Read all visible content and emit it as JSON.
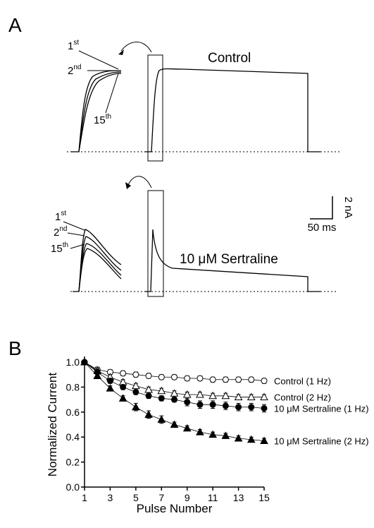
{
  "panels": {
    "a": {
      "label": "A",
      "control_label": "Control",
      "drug_label": "10 μM Sertraline",
      "control_pulses": [
        {
          "n": "1",
          "suffix": "st"
        },
        {
          "n": "2",
          "suffix": "nd"
        },
        {
          "n": "15",
          "suffix": "th"
        }
      ],
      "drug_pulses": [
        {
          "n": "1",
          "suffix": "st"
        },
        {
          "n": "2",
          "suffix": "nd"
        },
        {
          "n": "15",
          "suffix": "th"
        }
      ],
      "scale_current": "2 nA",
      "scale_time": "50 ms"
    },
    "b": {
      "label": "B"
    }
  },
  "chart_data": {
    "type": "line",
    "x_label": "Pulse Number",
    "y_label": "Normalized Current",
    "x": [
      1,
      2,
      3,
      4,
      5,
      6,
      7,
      8,
      9,
      10,
      11,
      12,
      13,
      14,
      15
    ],
    "xlim": [
      1,
      15
    ],
    "xticks": [
      1,
      3,
      5,
      7,
      9,
      11,
      13,
      15
    ],
    "ylim": [
      0,
      1.0
    ],
    "yticks": [
      {
        "value": 0,
        "label": "0.0"
      },
      {
        "value": 0.2,
        "label": "0.2"
      },
      {
        "value": 0.4,
        "label": "0.4"
      },
      {
        "value": 0.6,
        "label": "0.6"
      },
      {
        "value": 0.8,
        "label": "0.8"
      },
      {
        "value": 1.0,
        "label": "1.0"
      }
    ],
    "series": [
      {
        "name": "Control (1 Hz)",
        "color": "#000000",
        "marker": "open-circle",
        "values": [
          1.0,
          0.94,
          0.92,
          0.91,
          0.9,
          0.89,
          0.88,
          0.88,
          0.87,
          0.87,
          0.86,
          0.86,
          0.86,
          0.86,
          0.85
        ],
        "errors": [
          0,
          0.02,
          0.02,
          0.02,
          0.02,
          0.02,
          0.02,
          0.02,
          0.02,
          0.02,
          0.02,
          0.02,
          0.02,
          0.02,
          0.02
        ]
      },
      {
        "name": "Control (2 Hz)",
        "color": "#000000",
        "marker": "open-triangle",
        "values": [
          1.0,
          0.93,
          0.88,
          0.84,
          0.81,
          0.78,
          0.77,
          0.75,
          0.74,
          0.74,
          0.73,
          0.73,
          0.72,
          0.72,
          0.72
        ],
        "errors": [
          0,
          0.02,
          0.02,
          0.02,
          0.02,
          0.02,
          0.02,
          0.02,
          0.02,
          0.02,
          0.02,
          0.02,
          0.02,
          0.02,
          0.02
        ]
      },
      {
        "name": "10 μM Sertraline (1 Hz)",
        "color": "#000000",
        "marker": "filled-circle",
        "values": [
          1.0,
          0.92,
          0.85,
          0.8,
          0.76,
          0.73,
          0.71,
          0.7,
          0.68,
          0.66,
          0.66,
          0.65,
          0.64,
          0.64,
          0.63
        ],
        "errors": [
          0,
          0.02,
          0.02,
          0.02,
          0.02,
          0.02,
          0.02,
          0.02,
          0.03,
          0.03,
          0.03,
          0.03,
          0.03,
          0.03,
          0.03
        ]
      },
      {
        "name": "10 μM Sertraline (2 Hz)",
        "color": "#000000",
        "marker": "filled-triangle",
        "values": [
          1.0,
          0.89,
          0.79,
          0.71,
          0.64,
          0.58,
          0.54,
          0.5,
          0.47,
          0.44,
          0.42,
          0.41,
          0.39,
          0.38,
          0.37
        ],
        "errors": [
          0,
          0.02,
          0.02,
          0.02,
          0.03,
          0.03,
          0.03,
          0.02,
          0.02,
          0.02,
          0.02,
          0.02,
          0.02,
          0.02,
          0.02
        ]
      }
    ]
  }
}
